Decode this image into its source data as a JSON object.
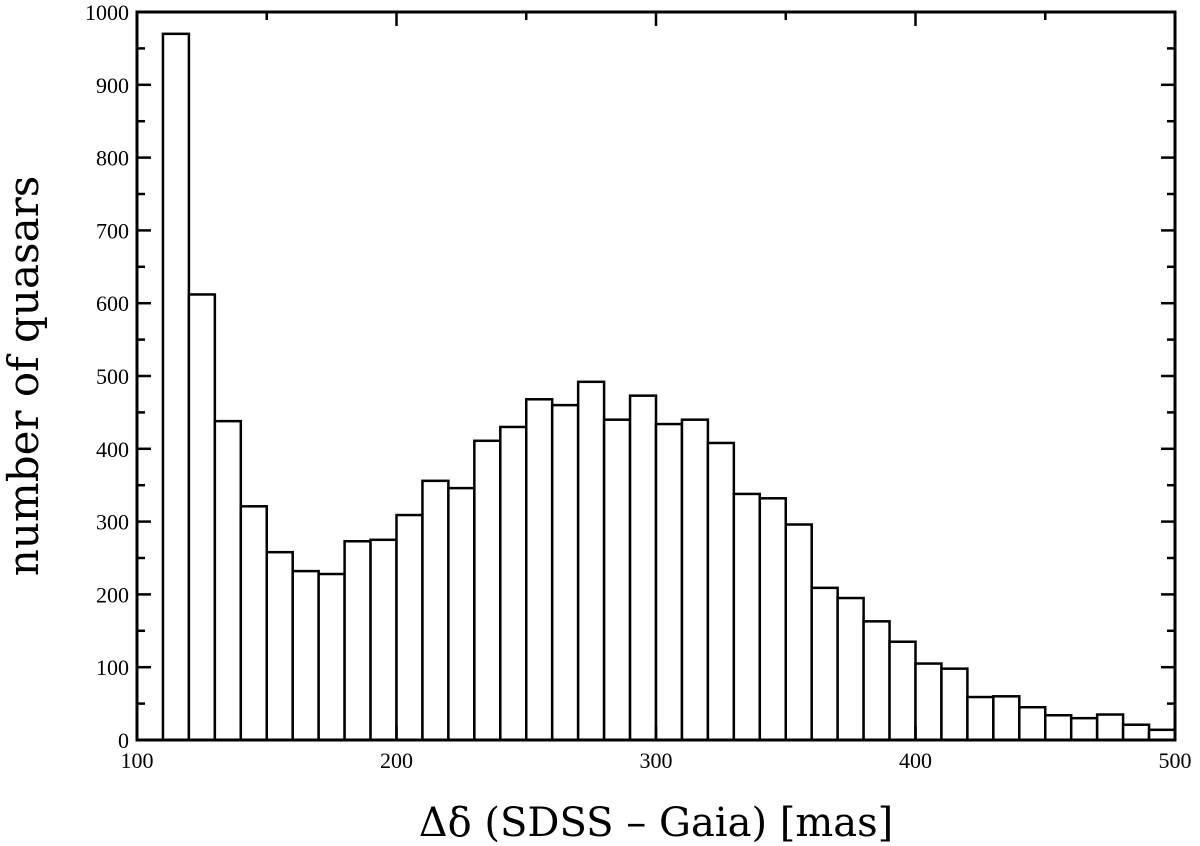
{
  "chart_data": {
    "type": "bar",
    "title": "",
    "xlabel": "Δδ (SDSS – Gaia) [mas]",
    "ylabel": "number of quasars",
    "xlim": [
      100,
      500
    ],
    "ylim": [
      0,
      1000
    ],
    "bin_width": 10,
    "x_ticks": [
      100,
      200,
      300,
      400,
      500
    ],
    "y_ticks": [
      0,
      100,
      200,
      300,
      400,
      500,
      600,
      700,
      800,
      900,
      1000
    ],
    "grid": false,
    "bins": [
      {
        "start": 110,
        "end": 120,
        "value": 970
      },
      {
        "start": 120,
        "end": 130,
        "value": 612
      },
      {
        "start": 130,
        "end": 140,
        "value": 438
      },
      {
        "start": 140,
        "end": 150,
        "value": 321
      },
      {
        "start": 150,
        "end": 160,
        "value": 258
      },
      {
        "start": 160,
        "end": 170,
        "value": 232
      },
      {
        "start": 170,
        "end": 180,
        "value": 228
      },
      {
        "start": 180,
        "end": 190,
        "value": 273
      },
      {
        "start": 190,
        "end": 200,
        "value": 275
      },
      {
        "start": 200,
        "end": 210,
        "value": 309
      },
      {
        "start": 210,
        "end": 220,
        "value": 356
      },
      {
        "start": 220,
        "end": 230,
        "value": 346
      },
      {
        "start": 230,
        "end": 240,
        "value": 411
      },
      {
        "start": 240,
        "end": 250,
        "value": 430
      },
      {
        "start": 250,
        "end": 260,
        "value": 468
      },
      {
        "start": 260,
        "end": 270,
        "value": 460
      },
      {
        "start": 270,
        "end": 280,
        "value": 492
      },
      {
        "start": 280,
        "end": 290,
        "value": 440
      },
      {
        "start": 290,
        "end": 300,
        "value": 473
      },
      {
        "start": 300,
        "end": 310,
        "value": 434
      },
      {
        "start": 310,
        "end": 320,
        "value": 440
      },
      {
        "start": 320,
        "end": 330,
        "value": 408
      },
      {
        "start": 330,
        "end": 340,
        "value": 338
      },
      {
        "start": 340,
        "end": 350,
        "value": 332
      },
      {
        "start": 350,
        "end": 360,
        "value": 296
      },
      {
        "start": 360,
        "end": 370,
        "value": 209
      },
      {
        "start": 370,
        "end": 380,
        "value": 195
      },
      {
        "start": 380,
        "end": 390,
        "value": 163
      },
      {
        "start": 390,
        "end": 400,
        "value": 135
      },
      {
        "start": 400,
        "end": 410,
        "value": 105
      },
      {
        "start": 410,
        "end": 420,
        "value": 98
      },
      {
        "start": 420,
        "end": 430,
        "value": 59
      },
      {
        "start": 430,
        "end": 440,
        "value": 60
      },
      {
        "start": 440,
        "end": 450,
        "value": 45
      },
      {
        "start": 450,
        "end": 460,
        "value": 34
      },
      {
        "start": 460,
        "end": 470,
        "value": 30
      },
      {
        "start": 470,
        "end": 480,
        "value": 35
      },
      {
        "start": 480,
        "end": 490,
        "value": 21
      },
      {
        "start": 490,
        "end": 500,
        "value": 14
      }
    ]
  }
}
